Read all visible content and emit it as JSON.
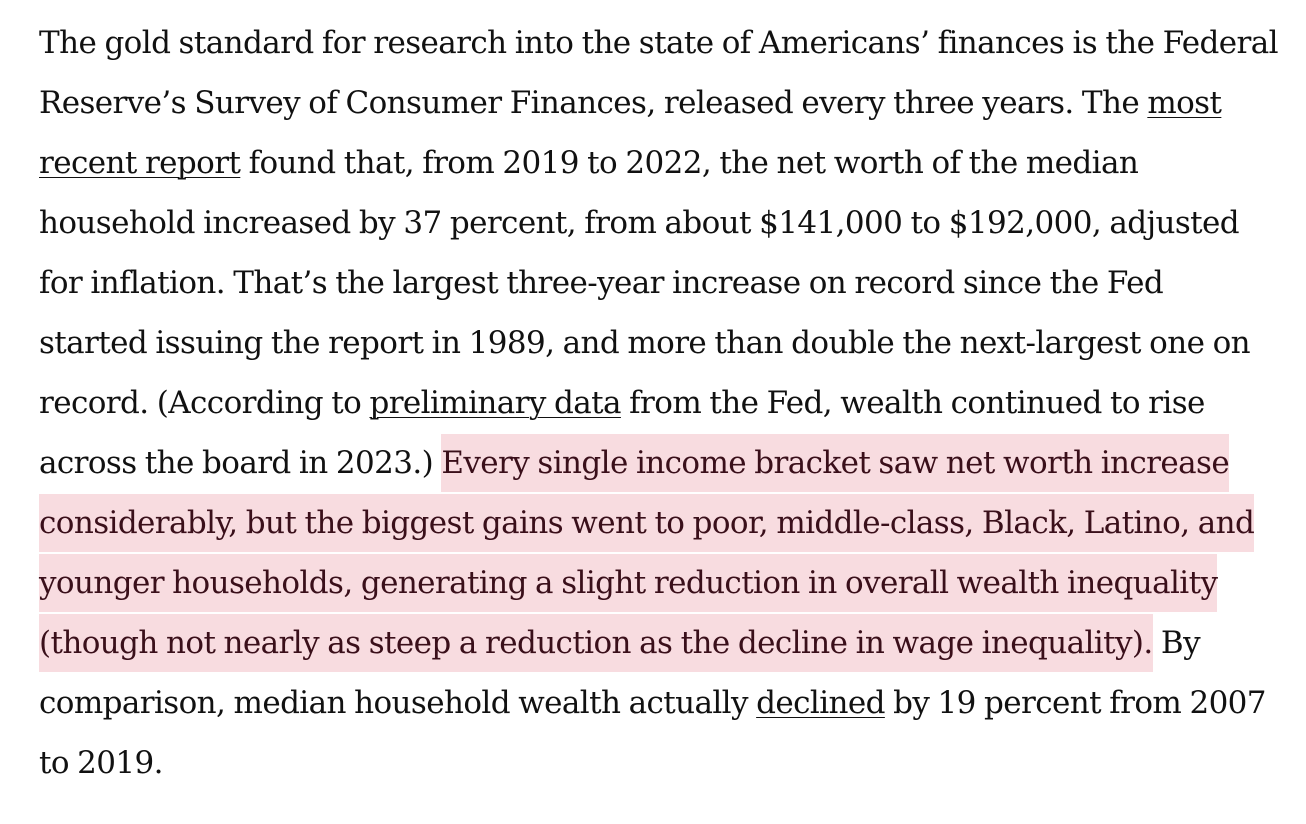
{
  "article": {
    "segments": {
      "intro": "The gold standard for research into the state of Americans’ finances is the Federal Reserve’s Survey of Consumer Finances, released every three years. The ",
      "link_most_recent_report": "most recent report",
      "after_report": " found that, from 2019 to 2022, the net worth of the median household increased by 37 percent, from about $141,000 to $192,000, adjusted for inflation. That’s the largest three-year increase on record since the Fed started issuing the report in 1989, and more than double the next-largest one on record. (According to ",
      "link_preliminary_data": "preliminary data",
      "after_preliminary": " from the Fed, wealth continued to rise across the board in 2023.) ",
      "highlighted": "Every single income bracket saw net worth increase considerably, but the biggest gains went to poor, middle-class, Black, Latino, and younger households, generating a slight reduction in overall wealth inequality (though not nearly as steep a reduction as the decline in wage inequality).",
      "after_highlight": " By comparison, median household wealth actually ",
      "link_declined": "declined",
      "ending": " by 19 percent from 2007 to 2019."
    },
    "highlight_color": "#f8dce0",
    "text_color": "#111111"
  }
}
